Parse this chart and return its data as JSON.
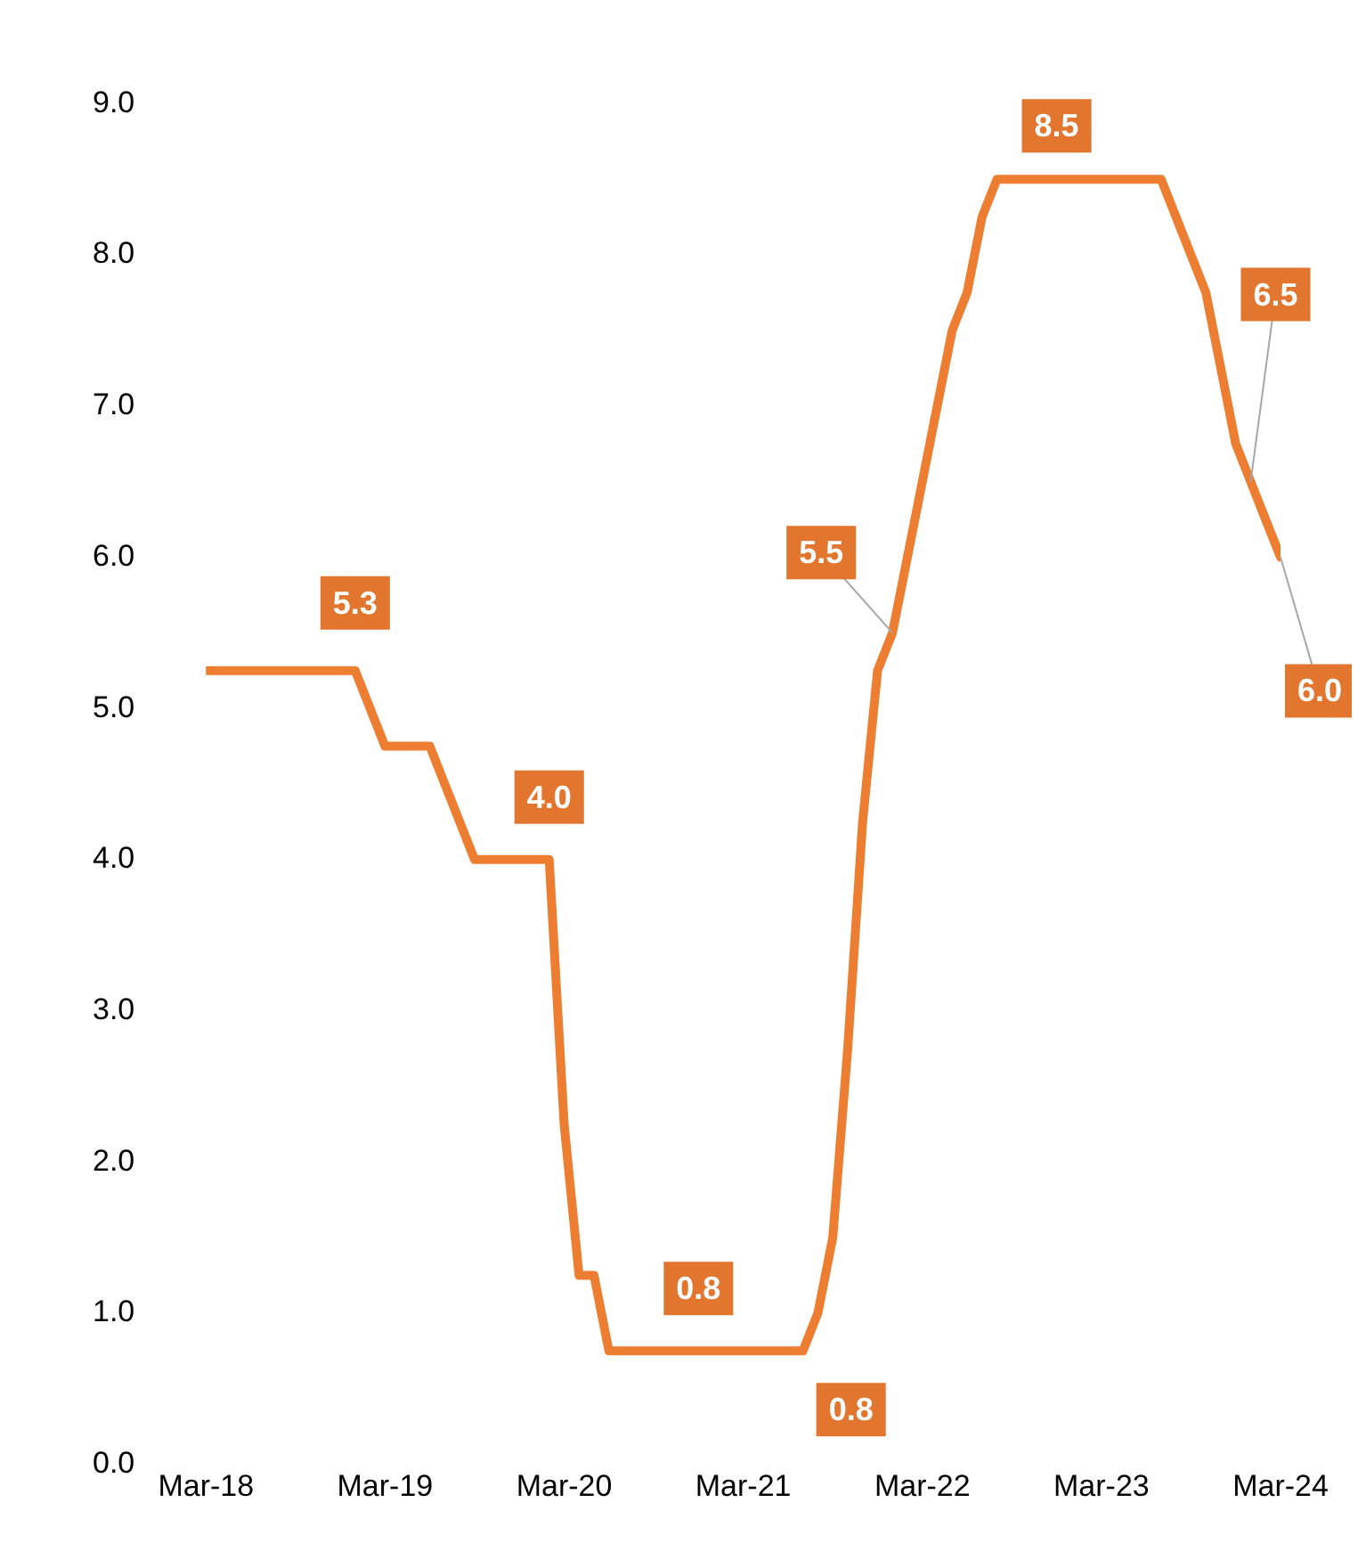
{
  "chart_data": {
    "type": "line",
    "x": [
      "2018-03",
      "2019-01",
      "2019-03",
      "2019-06",
      "2019-09",
      "2020-02",
      "2020-03",
      "2020-04",
      "2020-05",
      "2020-06",
      "2020-12",
      "2021-07",
      "2021-08",
      "2021-09",
      "2021-10",
      "2021-11",
      "2021-12",
      "2022-01",
      "2022-02",
      "2022-03",
      "2022-04",
      "2022-05",
      "2022-06",
      "2022-07",
      "2022-08",
      "2022-12",
      "2023-07",
      "2023-08",
      "2023-09",
      "2023-10",
      "2023-11",
      "2023-12",
      "2024-01",
      "2024-02",
      "2024-03"
    ],
    "values": [
      5.25,
      5.25,
      4.75,
      4.75,
      4.0,
      4.0,
      2.25,
      1.25,
      1.25,
      0.75,
      0.75,
      0.75,
      1.0,
      1.5,
      2.75,
      4.25,
      5.25,
      5.5,
      6.0,
      6.5,
      7.0,
      7.5,
      7.75,
      8.25,
      8.5,
      8.5,
      8.5,
      8.25,
      8.0,
      7.75,
      7.25,
      6.75,
      6.5,
      6.25,
      6.0
    ],
    "value_labels": [
      null,
      "5.3",
      null,
      null,
      null,
      "4.0",
      null,
      null,
      null,
      null,
      "0.8",
      "0.8",
      null,
      null,
      null,
      null,
      null,
      "5.5",
      null,
      null,
      null,
      null,
      null,
      null,
      null,
      "8.5",
      null,
      null,
      null,
      null,
      null,
      null,
      "6.5",
      null,
      "6.0"
    ],
    "color": "#ed7d31",
    "xlim": [
      "2018-03",
      "2024-03"
    ],
    "xticks": [
      {
        "value": "2018-03",
        "label": "Mar-18"
      },
      {
        "value": "2019-03",
        "label": "Mar-19"
      },
      {
        "value": "2020-03",
        "label": "Mar-20"
      },
      {
        "value": "2021-03",
        "label": "Mar-21"
      },
      {
        "value": "2022-03",
        "label": "Mar-22"
      },
      {
        "value": "2023-03",
        "label": "Mar-23"
      },
      {
        "value": "2024-03",
        "label": "Mar-24"
      }
    ],
    "ylim": [
      0,
      9
    ],
    "yticks": [
      {
        "value": 0,
        "label": "0.0"
      },
      {
        "value": 1,
        "label": "1.0"
      },
      {
        "value": 2,
        "label": "2.0"
      },
      {
        "value": 3,
        "label": "3.0"
      },
      {
        "value": 4,
        "label": "4.0"
      },
      {
        "value": 5,
        "label": "5.0"
      },
      {
        "value": 6,
        "label": "6.0"
      },
      {
        "value": 7,
        "label": "7.0"
      },
      {
        "value": 8,
        "label": "8.0"
      },
      {
        "value": 9,
        "label": "9.0"
      }
    ],
    "grid": false,
    "legend": false,
    "marker": "none",
    "line_style": "solid"
  }
}
